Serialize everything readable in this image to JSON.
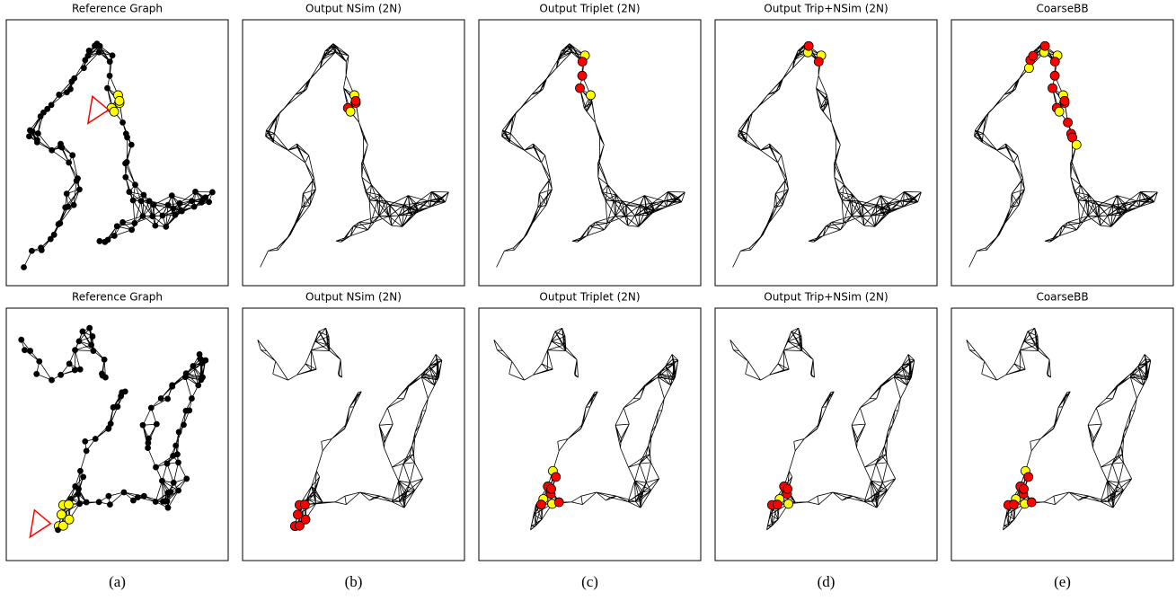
{
  "rows": [
    [
      "Reference Graph",
      "Output NSim (2N)",
      "Output Triplet (2N)",
      "Output Trip+NSim (2N)",
      "CoarseBB"
    ],
    [
      "Reference Graph",
      "Output NSim (2N)",
      "Output Triplet (2N)",
      "Output Trip+NSim (2N)",
      "CoarseBB"
    ]
  ],
  "captions": [
    "(a)",
    "(b)",
    "(c)",
    "(d)",
    "(e)"
  ]
}
